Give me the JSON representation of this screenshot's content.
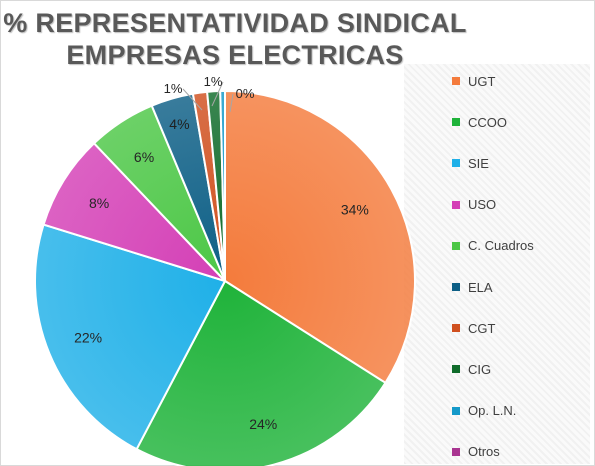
{
  "chart_data": {
    "type": "pie",
    "title": [
      "% REPRESENTATIVIDAD SINDICAL",
      "EMPRESAS ELECTRICAS"
    ],
    "slices": [
      {
        "label": "UGT",
        "value": 34.0,
        "display": "34%",
        "color": "#f47b3c"
      },
      {
        "label": "CCOO",
        "value": 23.7,
        "display": "24%",
        "color": "#1fb33a"
      },
      {
        "label": "SIE",
        "value": 22.1,
        "display": "22%",
        "color": "#1fb0e8"
      },
      {
        "label": "USO",
        "value": 8.1,
        "display": "8%",
        "color": "#d43fb6"
      },
      {
        "label": "C. Cuadros",
        "value": 5.8,
        "display": "6%",
        "color": "#4cc746"
      },
      {
        "label": "ELA",
        "value": 3.6,
        "display": "4%",
        "color": "#0d5f86"
      },
      {
        "label": "CGT",
        "value": 1.2,
        "display": "1%",
        "color": "#d0501f"
      },
      {
        "label": "CIG",
        "value": 1.1,
        "display": "1%",
        "color": "#0f6b2a"
      },
      {
        "label": "Op. L.N.",
        "value": 0.4,
        "display": "0%",
        "color": "#1499c9"
      },
      {
        "label": "Otros",
        "value": 0.0,
        "display": "",
        "color": "#a93591"
      }
    ],
    "legend_position": "right"
  }
}
